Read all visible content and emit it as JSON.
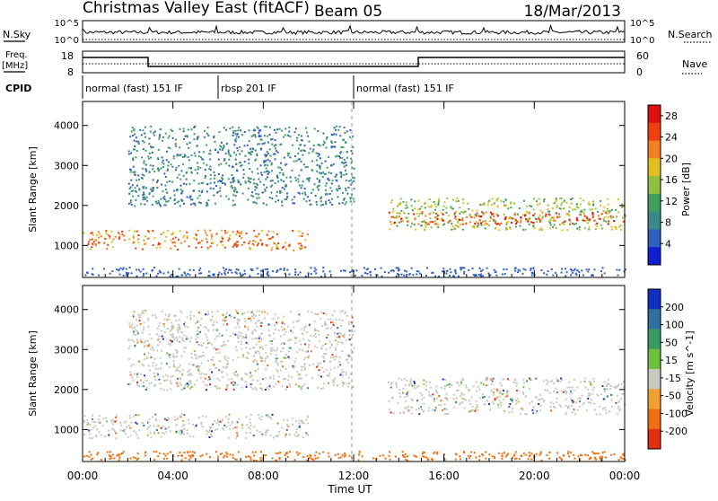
{
  "header": {
    "title": "Christmas Valley East (fitACF)",
    "beam": "Beam 05",
    "date": "18/Mar/2013"
  },
  "nsky_panel": {
    "left_label": "N.Sky",
    "right_label": "N.Search",
    "ticks_left": [
      "10^5",
      "10^0"
    ],
    "ticks_right": [
      "10^5",
      "10^0"
    ]
  },
  "freq_panel": {
    "left_label_1": "Freq.",
    "left_label_2": "[MHz]",
    "ticks_left": [
      "18",
      "8"
    ],
    "right_label": "Nave",
    "ticks_right": [
      "60",
      "0"
    ]
  },
  "cpid": {
    "label": "CPID",
    "segments": [
      {
        "label": "normal (fast) 151 IF",
        "start_hour": 0,
        "end_hour": 6
      },
      {
        "label": "rbsp 201 IF",
        "start_hour": 6,
        "end_hour": 12
      },
      {
        "label": "normal (fast) 151 IF",
        "start_hour": 12,
        "end_hour": 24
      }
    ]
  },
  "chart_data": [
    {
      "type": "heatmap",
      "name": "power",
      "ylabel": "Slant Range [km]",
      "y_ticks": [
        1000,
        2000,
        3000,
        4000
      ],
      "ylim": [
        200,
        4600
      ],
      "colorbar_label": "Power [dB]",
      "colorbar_ticks": [
        4,
        8,
        12,
        16,
        20,
        24,
        28
      ],
      "colorbar_range": [
        0,
        30
      ],
      "colors": [
        "#1020d0",
        "#3060c0",
        "#3a8a8a",
        "#40a060",
        "#90c040",
        "#e0c020",
        "#f08020",
        "#f04010",
        "#e01010"
      ],
      "regions": [
        {
          "t": [
            0,
            10
          ],
          "range": [
            900,
            1400
          ],
          "db": 24
        },
        {
          "t": [
            13.5,
            24
          ],
          "range": [
            1400,
            2200
          ],
          "db": 14
        },
        {
          "t": [
            13.5,
            24
          ],
          "range": [
            1550,
            1850
          ],
          "db": 26
        },
        {
          "t": [
            2,
            12
          ],
          "range": [
            2000,
            4000
          ],
          "db": 6
        }
      ]
    },
    {
      "type": "heatmap",
      "name": "velocity",
      "ylabel": "Slant Range [km]",
      "y_ticks": [
        1000,
        2000,
        3000,
        4000
      ],
      "ylim": [
        200,
        4600
      ],
      "colorbar_label": "Velocity [m s^-1]",
      "colorbar_ticks": [
        200,
        100,
        50,
        15,
        -15,
        -50,
        -100,
        -200
      ],
      "colorbar_range": [
        -250,
        250
      ],
      "colors": [
        "#1030c0",
        "#3070a0",
        "#3a9a60",
        "#70c040",
        "#c8c8c0",
        "#f0a030",
        "#f07010",
        "#e03010"
      ],
      "regions": [
        {
          "t": [
            0,
            10
          ],
          "range": [
            800,
            1400
          ],
          "v": 0
        },
        {
          "t": [
            13.5,
            24
          ],
          "range": [
            1400,
            2300
          ],
          "v": 0
        },
        {
          "t": [
            2,
            12
          ],
          "range": [
            2000,
            4000
          ],
          "v": 0
        }
      ]
    }
  ],
  "x_axis": {
    "label": "Time UT",
    "ticks": [
      "00:00",
      "04:00",
      "08:00",
      "12:00",
      "16:00",
      "20:00",
      "00:00"
    ],
    "tick_hours": [
      0,
      4,
      8,
      12,
      16,
      20,
      24
    ],
    "xlim": [
      0,
      24
    ]
  }
}
